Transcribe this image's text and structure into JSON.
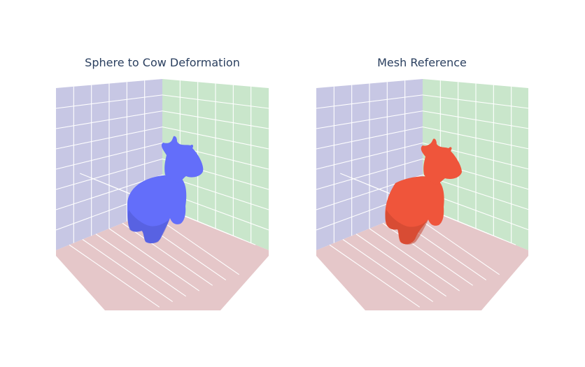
{
  "chart_data": [
    {
      "type": "mesh3d",
      "title": "Sphere to Cow Deformation",
      "series": [
        {
          "color": "#636efa"
        }
      ],
      "pane_colors": {
        "x": "#c7c7e4",
        "y": "#c9e6cb",
        "z": "#e5c7c9"
      },
      "grid": true,
      "axis_tick_labels_visible": false
    },
    {
      "type": "mesh3d",
      "title": "Mesh Reference",
      "series": [
        {
          "color": "#ef553b"
        }
      ],
      "pane_colors": {
        "x": "#c7c7e4",
        "y": "#c9e6cb",
        "z": "#e5c7c9"
      },
      "grid": true,
      "axis_tick_labels_visible": false
    }
  ]
}
